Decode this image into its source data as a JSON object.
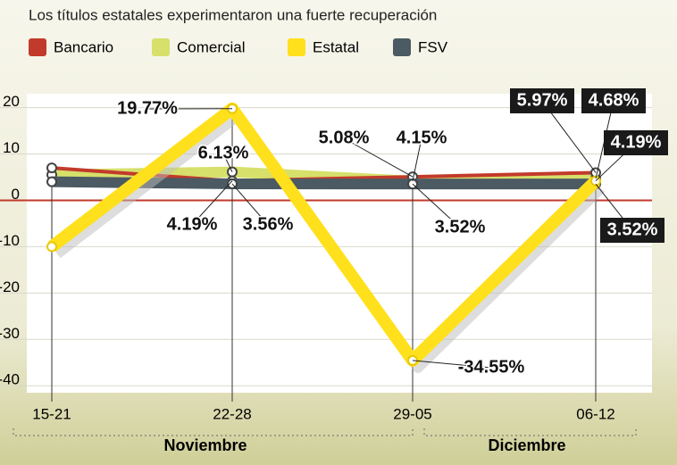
{
  "chart_data": {
    "type": "line",
    "title": "Los títulos estatales experimentaron una fuerte recuperación",
    "categories": [
      "15-21",
      "22-28",
      "29-05",
      "06-12"
    ],
    "groups": [
      {
        "label": "Noviembre"
      },
      {
        "label": "Diciembre"
      }
    ],
    "series": [
      {
        "name": "Bancario",
        "color": "#c23a2b",
        "values": [
          7,
          4.19,
          5.08,
          5.97
        ],
        "value_labels": [
          null,
          "4.19%",
          "5.08%",
          "5.97%"
        ]
      },
      {
        "name": "Comercial",
        "color": "#d6e06b",
        "values": [
          5.5,
          6.13,
          4.15,
          4.68
        ],
        "value_labels": [
          null,
          "6.13%",
          "4.15%",
          "4.68%"
        ]
      },
      {
        "name": "Estatal",
        "color": "#ffe01c",
        "values": [
          -10,
          19.77,
          -34.55,
          4.19
        ],
        "value_labels": [
          null,
          "19.77%",
          "-34.55%",
          "4.19%"
        ]
      },
      {
        "name": "FSV",
        "color": "#4b5a63",
        "values": [
          4,
          3.56,
          3.52,
          3.52
        ],
        "value_labels": [
          null,
          "3.56%",
          "3.52%",
          "3.52%"
        ]
      }
    ],
    "ylim": [
      -41.5,
      23
    ],
    "yticks": [
      20,
      10,
      0,
      -10,
      -20,
      -30,
      -40
    ],
    "grid": true
  }
}
